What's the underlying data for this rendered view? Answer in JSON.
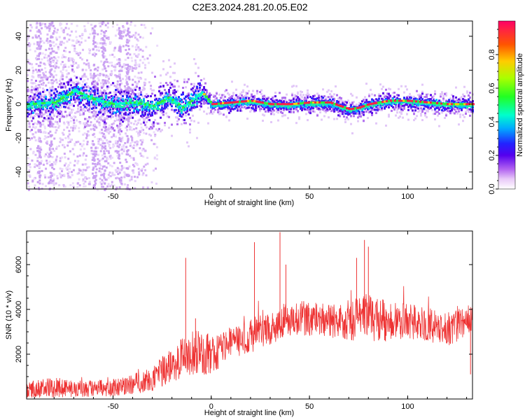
{
  "title": "C2E3.2024.281.20.05.E02",
  "colors": {
    "snr_line": "#ee3333",
    "axis": "#000000",
    "background": "#ffffff"
  },
  "chart_data": [
    {
      "type": "heatmap",
      "xlabel": "Height of straight line (km)",
      "ylabel": "Frequency (Hz)",
      "xlim": [
        -94,
        133
      ],
      "ylim": [
        -50,
        49
      ],
      "xticks": [
        -50,
        0,
        50,
        100
      ],
      "yticks": [
        -40,
        -20,
        0,
        20,
        40
      ],
      "grid": false,
      "ridge": {
        "description_x": [
          -94,
          -80,
          -70,
          -60,
          -50,
          -40,
          -30,
          -22,
          -15,
          -5,
          0,
          10,
          20,
          30,
          40,
          50,
          60,
          70,
          75,
          80,
          90,
          100,
          110,
          120,
          133
        ],
        "frequency": [
          0,
          1,
          8,
          3,
          0,
          1,
          -1,
          4,
          -2,
          7,
          0,
          1,
          2,
          0,
          0,
          1,
          1,
          -3,
          -2,
          0,
          2,
          2,
          1,
          0,
          0
        ]
      },
      "colorbar": {
        "label": "Normalized spectral amplitude",
        "range": [
          0.0,
          1.0
        ],
        "ticks": [
          0.0,
          0.2,
          0.4,
          0.6,
          0.8
        ]
      }
    },
    {
      "type": "line",
      "xlabel": "Height of straight line (km)",
      "ylabel": "SNR (10 * v/v)",
      "xlim": [
        -94,
        133
      ],
      "ylim": [
        0,
        7500
      ],
      "xticks": [
        -50,
        0,
        50,
        100
      ],
      "yticks": [
        2000,
        4000,
        6000
      ],
      "grid": false,
      "series": [
        {
          "trend_x": [
            -94,
            -80,
            -60,
            -50,
            -40,
            -30,
            -20,
            -10,
            0,
            10,
            20,
            30,
            40,
            50,
            60,
            70,
            80,
            90,
            100,
            110,
            120,
            133
          ],
          "trend_y": [
            400,
            500,
            450,
            500,
            650,
            900,
            1500,
            2100,
            2000,
            2500,
            2800,
            3200,
            3600,
            3600,
            3500,
            3500,
            3600,
            3500,
            3500,
            3300,
            3100,
            3600
          ],
          "spread": [
            300,
            350,
            300,
            300,
            350,
            450,
            600,
            800,
            700,
            600,
            600,
            600,
            600,
            600,
            600,
            700,
            800,
            700,
            600,
            600,
            600,
            500
          ],
          "spikes": [
            {
              "x": -13,
              "y": 6300
            },
            {
              "x": -8,
              "y": 3600
            },
            {
              "x": 22,
              "y": 7000
            },
            {
              "x": 35,
              "y": 7450
            },
            {
              "x": 38,
              "y": 6000
            },
            {
              "x": 78,
              "y": 7100
            },
            {
              "x": 80,
              "y": 6800
            },
            {
              "x": 74,
              "y": 6300
            },
            {
              "x": 132,
              "y": 1100
            }
          ]
        }
      ]
    }
  ]
}
